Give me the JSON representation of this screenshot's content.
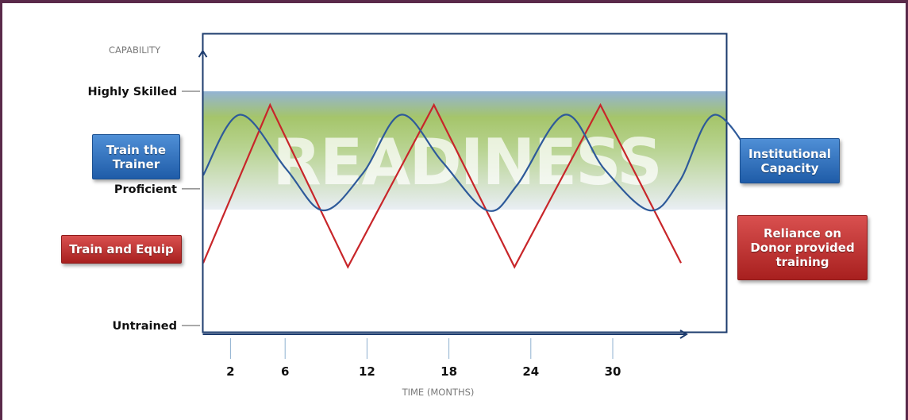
{
  "chart_data": {
    "type": "line",
    "title": "",
    "xlabel": "TIME (MONTHS)",
    "ylabel": "CAPABILITY",
    "x_ticks": [
      2,
      6,
      12,
      18,
      24,
      30
    ],
    "y_levels": [
      "Untrained",
      "Proficient",
      "Highly Skilled"
    ],
    "band_label": "READINESS",
    "band_range": [
      "Highly Skilled",
      "Proficient"
    ],
    "series": [
      {
        "name": "",
        "color": "#c8262a",
        "points": [
          [
            0,
            1.6
          ],
          [
            4.9,
            5.65
          ],
          [
            10.6,
            1.5
          ],
          [
            16.9,
            5.65
          ],
          [
            22.8,
            1.5
          ],
          [
            29.1,
            5.65
          ],
          [
            35,
            1.6
          ]
        ]
      },
      {
        "name": "",
        "color": "#2e5a9a",
        "points": [
          [
            0,
            3.85
          ],
          [
            2.7,
            5.4
          ],
          [
            6.1,
            4.0
          ],
          [
            8.8,
            2.95
          ],
          [
            11.7,
            3.9
          ],
          [
            14.5,
            5.4
          ],
          [
            17.5,
            4.2
          ],
          [
            20.8,
            2.95
          ],
          [
            23.0,
            3.6
          ],
          [
            26.5,
            5.4
          ],
          [
            29.4,
            4.0
          ],
          [
            32.7,
            2.95
          ],
          [
            34.9,
            3.7
          ],
          [
            37.5,
            5.4
          ],
          [
            41.0,
            3.85
          ]
        ]
      }
    ],
    "colors": {
      "band_top": "#93b3d4",
      "band_mid": "#9dc05a",
      "band_bottom": "#ffffff",
      "axis": "#1d3c6e",
      "frame": "#5a2a4a"
    }
  },
  "callouts": {
    "train_the_trainer": "Train the\nTrainer",
    "train_and_equip": "Train and Equip",
    "institutional_capacity": "Institutional\nCapacity",
    "reliance_on_donor": "Reliance on\nDonor provided\ntraining"
  }
}
